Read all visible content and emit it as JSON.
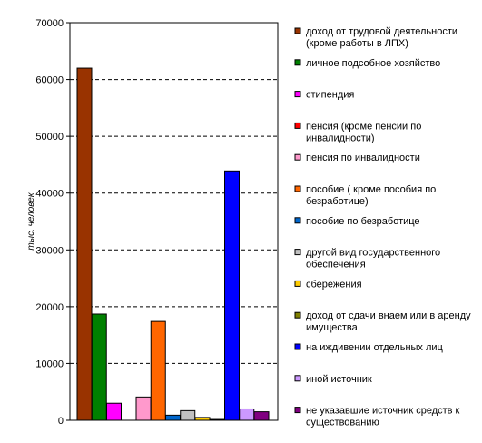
{
  "chart_data": {
    "type": "bar",
    "title": "",
    "xlabel": "",
    "ylabel": "тыс. человек",
    "ylim": [
      0,
      70000
    ],
    "yticks": [
      0,
      10000,
      20000,
      30000,
      40000,
      50000,
      60000,
      70000
    ],
    "grid": true,
    "legend_position": "right",
    "series": [
      {
        "name": "доход от трудовой деятельности (кроме работы в ЛПХ)",
        "value": 62000,
        "color": "#993300"
      },
      {
        "name": "личное подсобное хозяйство",
        "value": 18700,
        "color": "#008000"
      },
      {
        "name": "стипендия",
        "value": 3000,
        "color": "#ff00ff"
      },
      {
        "name": "пенсия (кроме пенсии по инвалидности)",
        "value": 0,
        "color": "#ff0000"
      },
      {
        "name": "пенсия по инвалидности",
        "value": 4100,
        "color": "#ff99cc"
      },
      {
        "name": "пособие ( кроме пособия по безработице)",
        "value": 17400,
        "color": "#ff6600"
      },
      {
        "name": "пособие по безработице",
        "value": 900,
        "color": "#0066cc"
      },
      {
        "name": "другой вид государственного обеспечения",
        "value": 1700,
        "color": "#c0c0c0"
      },
      {
        "name": "сбережения",
        "value": 500,
        "color": "#ffcc00"
      },
      {
        "name": "доход от сдачи внаем или в аренду имущества",
        "value": 150,
        "color": "#808000"
      },
      {
        "name": "на иждивении отдельных лиц",
        "value": 43900,
        "color": "#0000ff"
      },
      {
        "name": "иной источник",
        "value": 2000,
        "color": "#cc99ff"
      },
      {
        "name": "не указавшие источник средств к существованию",
        "value": 1500,
        "color": "#800080"
      }
    ]
  }
}
